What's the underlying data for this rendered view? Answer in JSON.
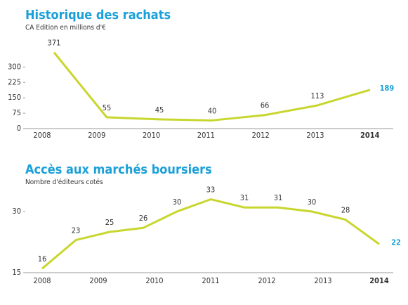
{
  "chart_data": [
    {
      "type": "line",
      "title": "Historique des rachats",
      "subtitle": "CA Edition en millions d'€",
      "categories": [
        "2008",
        "2009",
        "2010",
        "2011",
        "2012",
        "2013",
        "2014"
      ],
      "series": [
        {
          "name": "CA Edition",
          "color": "#c8d62e",
          "values": [
            371,
            55,
            45,
            40,
            66,
            113,
            189
          ]
        }
      ],
      "ylim": [
        0,
        380
      ],
      "yticks": [
        0,
        75,
        150,
        225,
        300
      ]
    },
    {
      "type": "line",
      "title": "Accès aux marchés boursiers",
      "subtitle": "Nombre d'éditeurs cotés",
      "x": [
        2008,
        2008.6,
        2009.2,
        2009.8,
        2010.4,
        2011,
        2011.6,
        2012.2,
        2012.8,
        2013.4,
        2014
      ],
      "xlim": [
        2008,
        2014
      ],
      "xticks": [
        2008,
        2009,
        2010,
        2011,
        2012,
        2013,
        2014
      ],
      "series": [
        {
          "name": "Éditeurs cotés",
          "color": "#c8d62e",
          "values": [
            16,
            23,
            25,
            26,
            30,
            33,
            31,
            31,
            30,
            28,
            22
          ]
        }
      ],
      "ylim": [
        15,
        35
      ],
      "yticks": [
        15,
        30
      ]
    }
  ]
}
